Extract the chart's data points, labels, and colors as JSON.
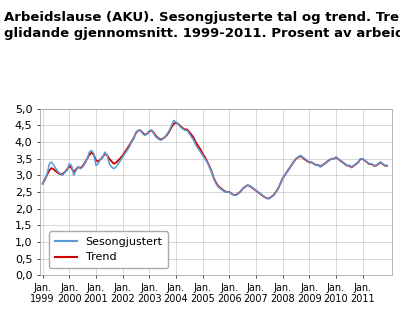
{
  "title": "Arbeidslause (AKU). Sesongjusterte tal og trend. Tremånaders\nglidande gjennomsnitt. 1999-2011. Prosent av arbeidsstyrken",
  "ylim": [
    0.0,
    5.0
  ],
  "yticks": [
    0.0,
    0.5,
    1.0,
    1.5,
    2.0,
    2.5,
    3.0,
    3.5,
    4.0,
    4.5,
    5.0
  ],
  "line_seasonal_color": "#5b9bd5",
  "line_trend_color": "#cc0000",
  "legend_labels": [
    "Sesongjustert",
    "Trend"
  ],
  "background_color": "#ffffff",
  "grid_color": "#c8c8c8",
  "title_fontsize": 9.5,
  "tick_fontsize": 8,
  "seasonal": [
    2.75,
    2.85,
    3.05,
    3.35,
    3.4,
    3.3,
    3.2,
    3.1,
    3.05,
    3.0,
    3.1,
    3.15,
    3.35,
    3.3,
    3.0,
    3.15,
    3.25,
    3.2,
    3.25,
    3.35,
    3.5,
    3.7,
    3.75,
    3.65,
    3.3,
    3.35,
    3.5,
    3.55,
    3.7,
    3.6,
    3.35,
    3.25,
    3.2,
    3.25,
    3.35,
    3.45,
    3.55,
    3.65,
    3.75,
    3.85,
    4.0,
    4.1,
    4.3,
    4.35,
    4.35,
    4.25,
    4.2,
    4.25,
    4.35,
    4.35,
    4.25,
    4.15,
    4.1,
    4.05,
    4.1,
    4.15,
    4.25,
    4.35,
    4.5,
    4.65,
    4.6,
    4.55,
    4.45,
    4.4,
    4.35,
    4.35,
    4.25,
    4.15,
    4.05,
    3.9,
    3.8,
    3.7,
    3.6,
    3.5,
    3.4,
    3.25,
    3.1,
    2.9,
    2.75,
    2.65,
    2.6,
    2.55,
    2.5,
    2.5,
    2.5,
    2.45,
    2.4,
    2.4,
    2.45,
    2.5,
    2.6,
    2.65,
    2.7,
    2.7,
    2.65,
    2.6,
    2.55,
    2.5,
    2.45,
    2.4,
    2.35,
    2.3,
    2.3,
    2.35,
    2.4,
    2.5,
    2.6,
    2.75,
    2.9,
    3.0,
    3.1,
    3.2,
    3.3,
    3.4,
    3.5,
    3.55,
    3.6,
    3.55,
    3.5,
    3.45,
    3.4,
    3.4,
    3.35,
    3.3,
    3.3,
    3.25,
    3.3,
    3.35,
    3.4,
    3.45,
    3.5,
    3.5,
    3.55,
    3.5,
    3.45,
    3.4,
    3.35,
    3.3,
    3.3,
    3.25,
    3.3,
    3.35,
    3.4,
    3.5,
    3.5,
    3.45,
    3.4,
    3.35,
    3.35,
    3.3,
    3.3,
    3.35,
    3.4,
    3.35,
    3.3,
    3.3
  ],
  "trend": [
    2.75,
    2.88,
    3.02,
    3.15,
    3.22,
    3.18,
    3.12,
    3.07,
    3.03,
    3.05,
    3.1,
    3.18,
    3.28,
    3.22,
    3.1,
    3.18,
    3.25,
    3.22,
    3.28,
    3.38,
    3.5,
    3.62,
    3.68,
    3.62,
    3.45,
    3.42,
    3.48,
    3.55,
    3.65,
    3.6,
    3.5,
    3.42,
    3.35,
    3.38,
    3.45,
    3.52,
    3.6,
    3.7,
    3.8,
    3.9,
    4.02,
    4.12,
    4.28,
    4.35,
    4.35,
    4.28,
    4.22,
    4.25,
    4.32,
    4.35,
    4.28,
    4.18,
    4.12,
    4.08,
    4.1,
    4.15,
    4.22,
    4.32,
    4.45,
    4.55,
    4.58,
    4.55,
    4.48,
    4.42,
    4.38,
    4.38,
    4.3,
    4.22,
    4.12,
    3.98,
    3.88,
    3.78,
    3.65,
    3.55,
    3.42,
    3.28,
    3.12,
    2.92,
    2.78,
    2.68,
    2.62,
    2.57,
    2.52,
    2.5,
    2.5,
    2.45,
    2.41,
    2.41,
    2.46,
    2.51,
    2.6,
    2.65,
    2.7,
    2.69,
    2.64,
    2.59,
    2.54,
    2.49,
    2.44,
    2.39,
    2.34,
    2.31,
    2.31,
    2.36,
    2.41,
    2.51,
    2.61,
    2.76,
    2.91,
    3.01,
    3.11,
    3.21,
    3.31,
    3.41,
    3.5,
    3.54,
    3.58,
    3.53,
    3.48,
    3.43,
    3.39,
    3.39,
    3.35,
    3.31,
    3.31,
    3.27,
    3.31,
    3.36,
    3.41,
    3.46,
    3.5,
    3.5,
    3.54,
    3.49,
    3.44,
    3.39,
    3.34,
    3.29,
    3.29,
    3.24,
    3.29,
    3.34,
    3.39,
    3.49,
    3.49,
    3.44,
    3.39,
    3.34,
    3.34,
    3.29,
    3.29,
    3.34,
    3.39,
    3.34,
    3.29,
    3.29
  ]
}
